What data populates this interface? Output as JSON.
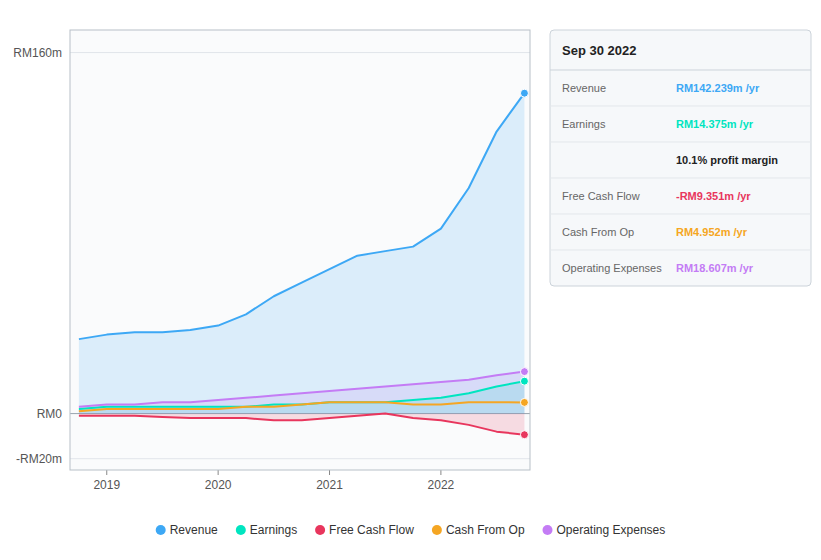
{
  "chart_data": {
    "type": "area",
    "title": "Sep 30 2022",
    "x": [
      2018.75,
      2019.0,
      2019.25,
      2019.5,
      2019.75,
      2020.0,
      2020.25,
      2020.5,
      2020.75,
      2021.0,
      2021.25,
      2021.5,
      2021.75,
      2022.0,
      2022.25,
      2022.5,
      2022.75
    ],
    "xlim": [
      2018.67,
      2022.8
    ],
    "xticks": [
      2019,
      2020,
      2021,
      2022
    ],
    "ylim": [
      -25,
      170
    ],
    "yticks": [
      {
        "value": -20,
        "label": "-RM20m"
      },
      {
        "value": 0,
        "label": "RM0"
      },
      {
        "value": 160,
        "label": "RM160m"
      }
    ],
    "grid": true,
    "legend": "bottom",
    "series": [
      {
        "name": "Revenue",
        "type": "area",
        "color": "#3da8f5",
        "values": [
          33,
          35,
          36,
          36,
          37,
          39,
          44,
          52,
          58,
          64,
          70,
          72,
          74,
          82,
          100,
          125,
          142
        ]
      },
      {
        "name": "Earnings",
        "type": "area",
        "color": "#00e5c0",
        "values": [
          2,
          3,
          3,
          3,
          3,
          3,
          3,
          4,
          4,
          5,
          5,
          5,
          6,
          7,
          9,
          12,
          14.375
        ]
      },
      {
        "name": "Free Cash Flow",
        "type": "area",
        "color": "#e8365d",
        "values": [
          -1,
          -1,
          -1,
          -1.5,
          -2,
          -2,
          -2,
          -3,
          -3,
          -2,
          -1,
          0,
          -2,
          -3,
          -5,
          -8,
          -9.351
        ]
      },
      {
        "name": "Cash From Op",
        "type": "line",
        "color": "#f5a623",
        "values": [
          1,
          2,
          2,
          2,
          2,
          2,
          3,
          3,
          4,
          5,
          5,
          5,
          4,
          4,
          5,
          5,
          4.952
        ]
      },
      {
        "name": "Operating Expenses",
        "type": "area",
        "color": "#c47cf5",
        "values": [
          3,
          4,
          4,
          5,
          5,
          6,
          7,
          8,
          9,
          10,
          11,
          12,
          13,
          14,
          15,
          17,
          18.607
        ]
      }
    ],
    "annotations": [
      {
        "label": "Revenue",
        "text": "RM142.239m /yr",
        "color": "#3da8f5"
      },
      {
        "label": "Earnings",
        "text": "RM14.375m /yr",
        "color": "#00e5c0"
      },
      {
        "text": "10.1% profit margin"
      },
      {
        "label": "Free Cash Flow",
        "text": "-RM9.351m /yr",
        "color": "#e8365d"
      },
      {
        "label": "Cash From Op",
        "text": "RM4.952m /yr",
        "color": "#f5a623"
      },
      {
        "label": "Operating Expenses",
        "text": "RM18.607m /yr",
        "color": "#c47cf5"
      }
    ]
  }
}
